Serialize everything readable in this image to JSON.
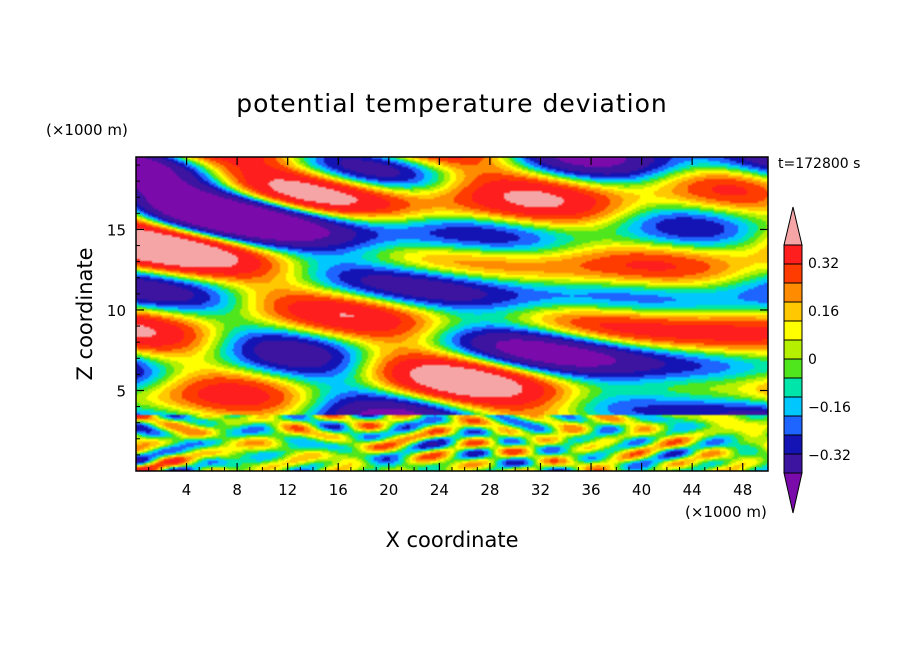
{
  "chart_data": {
    "type": "heatmap",
    "title": "potential temperature deviation",
    "xlabel": "X coordinate",
    "ylabel": "Z coordinate",
    "x_unit": "(×1000 m)",
    "y_unit": "(×1000 m)",
    "time_label": "t=172800 s",
    "xlim": [
      0,
      50
    ],
    "ylim": [
      0,
      19.5
    ],
    "x_ticks": [
      4,
      8,
      12,
      16,
      20,
      24,
      28,
      32,
      36,
      40,
      44,
      48
    ],
    "y_ticks": [
      5,
      10,
      15
    ],
    "colorbar": {
      "levels": [
        -0.4,
        -0.32,
        -0.24,
        -0.16,
        -0.08,
        0,
        0.08,
        0.16,
        0.24,
        0.32,
        0.4
      ],
      "tick_labels": [
        "0.32",
        "0.16",
        "0",
        "−0.16",
        "−0.32"
      ],
      "tick_values": [
        0.32,
        0.16,
        0,
        -0.16,
        -0.32
      ],
      "colors": [
        "#7a0aaa",
        "#3c14a0",
        "#1414b4",
        "#1e64ff",
        "#00c8ff",
        "#00e6aa",
        "#50e61e",
        "#b4f000",
        "#ffff00",
        "#ffc800",
        "#ff8c00",
        "#ff3c00",
        "#ff1e1e",
        "#f5a5a5"
      ],
      "extend": "both"
    },
    "description": "Horizontally layered pattern: above ~3.5 km, alternating long lenses of strongly negative (purple) and strongly positive (pink) deviation; below ~3.5 km, weaker mixed-sign cellular turbulence (greens, cyans, yellows)."
  }
}
